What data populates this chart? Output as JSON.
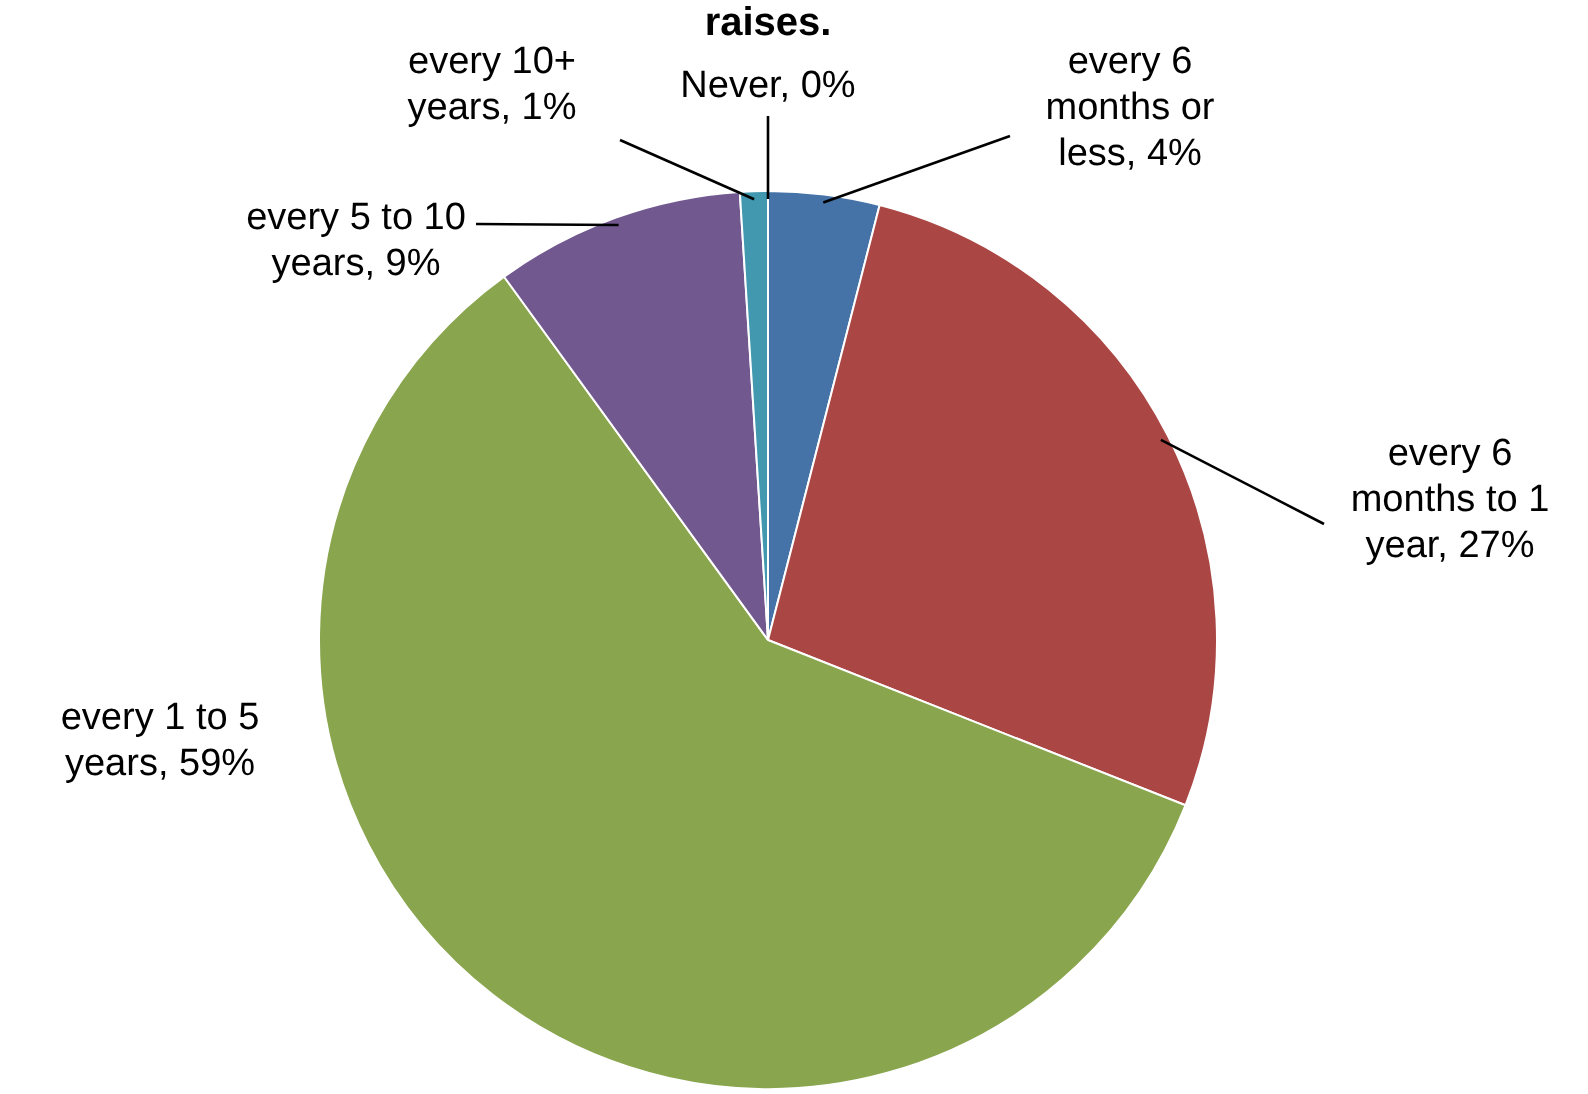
{
  "chart_data": {
    "type": "pie",
    "title": "raises.",
    "categories": [
      "every 6 months or less, 4%",
      "every 6 months to 1 year, 27%",
      "every 1 to 5 years, 59%",
      "every 5 to 10 years, 9%",
      "every 10+ years, 1%",
      "Never, 0%"
    ],
    "values": [
      4,
      27,
      59,
      9,
      1,
      0
    ],
    "colors": [
      "#4573a7",
      "#aa4643",
      "#89a54e",
      "#71588f",
      "#4198af",
      "#db843d"
    ],
    "legend": false
  }
}
